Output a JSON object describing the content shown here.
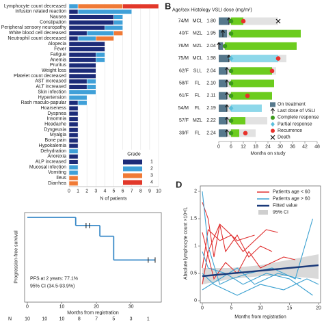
{
  "chart_data": [
    {
      "type": "stacked_barh",
      "categories": [
        "Lymphocyte count decreased",
        "Infusion related reaction",
        "Nausea",
        "Constipation",
        "Peripheral sensory neuropathy",
        "White blood cell decreased",
        "Neutrophil count decreased",
        "Alopecia",
        "Fever",
        "Fatigue",
        "Anemia",
        "Pruritus",
        "Weight loss",
        "Platelet count decreased",
        "AST increased",
        "ALT increased",
        "Skin infection",
        "Hypertension",
        "Rash maculo-papular",
        "Hoarseness",
        "Dyspnea",
        "Insomnia",
        "Headache",
        "Dysgeusia",
        "Myalgia",
        "Bone pain",
        "Hypokalemia",
        "Dehydration",
        "Anorexia",
        "ALP increased",
        "Mucosal infection",
        "Vomiting",
        "Ileus",
        "Diarrhea"
      ],
      "series": [
        {
          "name": "1",
          "color": "#1c2b78",
          "values": [
            0,
            1,
            5,
            5,
            4,
            2,
            1,
            4,
            4,
            3,
            3,
            3,
            3,
            3,
            2,
            2,
            0,
            0,
            1,
            1,
            1,
            1,
            1,
            1,
            1,
            1,
            1,
            0,
            1,
            1,
            0,
            0,
            0,
            0
          ]
        },
        {
          "name": "2",
          "color": "#3fa0d8",
          "values": [
            1,
            6,
            1,
            1,
            2,
            3,
            2,
            0,
            0,
            1,
            1,
            0,
            0,
            0,
            1,
            1,
            3,
            2,
            1,
            0,
            0,
            0,
            0,
            0,
            0,
            0,
            0,
            1,
            0,
            0,
            1,
            1,
            0,
            0
          ]
        },
        {
          "name": "3",
          "color": "#f07a36",
          "values": [
            5,
            0,
            0,
            0,
            0,
            1,
            2,
            0,
            0,
            0,
            0,
            0,
            0,
            0,
            0,
            0,
            0,
            0,
            0,
            0,
            0,
            0,
            0,
            0,
            0,
            0,
            0,
            0,
            0,
            0,
            0,
            0,
            1,
            1
          ]
        },
        {
          "name": "4",
          "color": "#e2382a",
          "values": [
            4,
            0,
            0,
            0,
            0,
            0,
            0,
            0,
            0,
            0,
            0,
            0,
            0,
            0,
            0,
            0,
            0,
            0,
            0,
            0,
            0,
            0,
            0,
            0,
            0,
            0,
            0,
            0,
            0,
            0,
            0,
            0,
            0,
            0
          ]
        }
      ],
      "legend_title": "Grade",
      "xlabel": "N of patients",
      "xlim": [
        0,
        10
      ],
      "xticks": [
        0,
        1,
        2,
        3,
        4,
        5,
        6,
        7,
        8,
        9,
        10
      ],
      "grid": true
    },
    {
      "type": "swimmer",
      "letter": "B",
      "header": "Age/sex Histology  VSLI dose (mg/m²)",
      "xlabel": "Months on study",
      "xlim": [
        0,
        48
      ],
      "xticks": [
        0,
        6,
        12,
        18,
        24,
        30,
        36,
        42,
        48
      ],
      "rows": [
        {
          "age_sex": "74/M",
          "histology": "MCL",
          "dose": "1.80",
          "treatment_end": 5,
          "last_dose": 5,
          "response": "CR",
          "response_time": 6,
          "response_end": 12,
          "recurrence": 12,
          "followup_end": 29,
          "death": 29
        },
        {
          "age_sex": "40/F",
          "histology": "MZL",
          "dose": "1.95",
          "treatment_end": 4,
          "last_dose": 2,
          "response": "CR",
          "response_time": 6,
          "response_end": 40,
          "recurrence": null,
          "followup_end": 40,
          "death": null
        },
        {
          "age_sex": "76/M",
          "histology": "MZL",
          "dose": "2.04",
          "treatment_end": 2,
          "last_dose": 0,
          "response": "CR",
          "response_time": 3,
          "response_end": 38,
          "recurrence": null,
          "followup_end": 38,
          "death": null
        },
        {
          "age_sex": "75/M",
          "histology": "MCL",
          "dose": "1.98",
          "treatment_end": 5,
          "last_dose": 5,
          "response": "PR",
          "response_time": 6,
          "response_end": 29,
          "recurrence": 29,
          "followup_end": 33,
          "death": null
        },
        {
          "age_sex": "62/F",
          "histology": "SLL",
          "dose": "2.04",
          "treatment_end": 4,
          "last_dose": 4,
          "response": "CR",
          "response_time": 6,
          "response_end": 26,
          "recurrence": 26,
          "followup_end": 28,
          "death": null
        },
        {
          "age_sex": "58/F",
          "histology": "FL",
          "dose": "2.10",
          "treatment_end": 4,
          "last_dose": 4,
          "response": "CR",
          "response_time": 6,
          "response_end": 27,
          "recurrence": null,
          "followup_end": 27,
          "death": null
        },
        {
          "age_sex": "61/F",
          "histology": "FL",
          "dose": "2.11",
          "treatment_end": 4,
          "last_dose": 4,
          "response": "CR",
          "response_time": 6,
          "response_end": 26,
          "recurrence": 14,
          "followup_end": 26,
          "death": null
        },
        {
          "age_sex": "54/M",
          "histology": "FL",
          "dose": "2.19",
          "treatment_end": 4,
          "last_dose": 4,
          "response": "PR",
          "response_time": 6,
          "response_end": 21,
          "recurrence": null,
          "followup_end": 21,
          "death": null
        },
        {
          "age_sex": "57/F",
          "histology": "MZL",
          "dose": "2.22",
          "treatment_end": 4,
          "last_dose": 4,
          "response": "CR",
          "response_time": 6,
          "response_end": 13,
          "recurrence": null,
          "followup_end": 25,
          "death": null
        },
        {
          "age_sex": "39/F",
          "histology": "FL",
          "dose": "2.24",
          "treatment_end": 4,
          "last_dose": 4,
          "response": "CR",
          "response_time": 6,
          "response_end": 10,
          "recurrence": 13,
          "followup_end": 18,
          "death": null
        }
      ],
      "legend": {
        "on_treatment": "On treatment",
        "last_dose": "Last dose of VSLI",
        "complete": "Complete response",
        "partial": "Partial response",
        "recurrence": "Recurrence",
        "death": "Death"
      },
      "colors": {
        "treatment": "#56788c",
        "complete_bar": "#6ccc1e",
        "partial_bar": "#8ed8ea",
        "followup": "#e2e2e2",
        "complete_marker": "#3c9a1c",
        "partial_marker": "#5bbfdc",
        "recurrence": "#e8302a",
        "death": "#111111"
      }
    },
    {
      "type": "km",
      "ylabel": "Progression-free survival",
      "xlabel": "Months from registration",
      "annotations": [
        "PFS at 2 years: 77.1%",
        "95% CI (34.5-93.9%)"
      ],
      "x": [
        0,
        14,
        21,
        25,
        37
      ],
      "values": [
        1,
        0.9,
        0.77,
        0.48,
        0.48
      ],
      "censored": {
        "x": [
          17,
          18,
          35,
          37
        ],
        "y": [
          0.9,
          0.9,
          0.48,
          0.48
        ]
      },
      "xlim": [
        0,
        38
      ],
      "xticks": [
        0,
        10,
        20,
        30
      ],
      "ylim": [
        0,
        1
      ],
      "color": "#3a8ac8",
      "risk_label": "N",
      "risk_x": [
        0,
        5,
        10,
        15,
        20,
        25,
        30,
        35
      ],
      "risk_n": [
        10,
        10,
        10,
        8,
        7,
        5,
        3,
        1
      ]
    },
    {
      "type": "spaghetti",
      "letter": "D",
      "xlabel": "Months from registration",
      "ylabel": "Absolute lymphocyte count ×10⁹/L",
      "xlim": [
        0,
        20
      ],
      "xticks": [
        0,
        5,
        10,
        15,
        20
      ],
      "ylim": [
        0,
        2.1
      ],
      "yticks": [
        0,
        0.5,
        1,
        1.5,
        2
      ],
      "groups": [
        {
          "name": "Patients age < 60",
          "color": "#e03030",
          "patients": [
            {
              "x": [
                0,
                1,
                2,
                3,
                4,
                6,
                8,
                10,
                12
              ],
              "y": [
                1.8,
                1.5,
                0.8,
                1.4,
                0.9,
                1.2,
                0.8,
                1.0,
                0.9
              ]
            },
            {
              "x": [
                0,
                1,
                3,
                5,
                7,
                9,
                11,
                13
              ],
              "y": [
                0.6,
                1.3,
                1.1,
                1.2,
                0.9,
                1.1,
                1.3,
                1.25
              ]
            },
            {
              "x": [
                0,
                2,
                4,
                6,
                8,
                10,
                14,
                16
              ],
              "y": [
                1.25,
                0.4,
                0.7,
                0.5,
                0.9,
                0.6,
                0.8,
                0.75
              ]
            },
            {
              "x": [
                0,
                1,
                3,
                6,
                9
              ],
              "y": [
                0.3,
                0.9,
                1.4,
                1.1,
                1.2
              ]
            }
          ]
        },
        {
          "name": "Patients age > 60",
          "color": "#3aa0d0",
          "patients": [
            {
              "x": [
                0,
                1,
                3,
                5,
                8,
                12,
                16,
                19
              ],
              "y": [
                2.0,
                1.0,
                0.3,
                0.4,
                0.5,
                0.6,
                0.4,
                1.5
              ]
            },
            {
              "x": [
                0,
                2,
                4,
                6,
                10,
                14,
                18,
                20
              ],
              "y": [
                0.5,
                0.3,
                0.2,
                0.1,
                0.3,
                0.2,
                0.4,
                0.3
              ]
            },
            {
              "x": [
                0,
                1,
                4,
                7,
                11,
                15,
                19
              ],
              "y": [
                0.9,
                0.6,
                0.5,
                0.3,
                0.5,
                0.4,
                0.1
              ]
            },
            {
              "x": [
                0,
                3,
                6,
                9,
                13,
                17
              ],
              "y": [
                0.2,
                0.4,
                0.6,
                0.3,
                0.5,
                0.4
              ]
            }
          ]
        }
      ],
      "fit": {
        "name": "Fitted value",
        "color": "#1a3a7a",
        "x": [
          0,
          20
        ],
        "y": [
          0.45,
          0.65
        ]
      },
      "ci": {
        "name": "95% CI",
        "color": "#cfcfcf",
        "x": [
          0,
          5,
          10,
          15,
          20
        ],
        "lower": [
          0.3,
          0.4,
          0.45,
          0.45,
          0.4
        ],
        "upper": [
          0.6,
          0.6,
          0.65,
          0.75,
          0.85
        ]
      }
    }
  ]
}
